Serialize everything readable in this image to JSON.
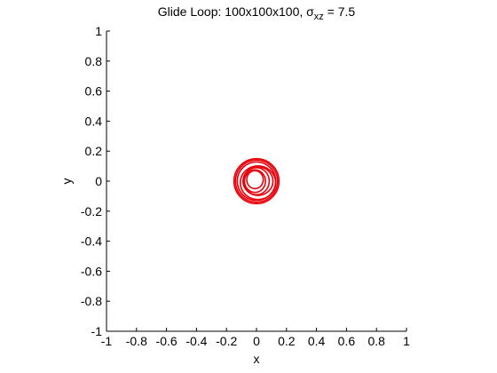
{
  "chart_data": {
    "type": "line",
    "title_main": "Glide Loop: 100x100x100, σ",
    "title_sub": "xz",
    "title_tail": " = 7.5",
    "xlabel": "x",
    "ylabel": "y",
    "xlim": [
      -1,
      1
    ],
    "ylim": [
      -1,
      1
    ],
    "xticks": [
      "-1",
      "-0.8",
      "-0.6",
      "-0.4",
      "-0.2",
      "0",
      "0.2",
      "0.4",
      "0.6",
      "0.8",
      "1"
    ],
    "yticks": [
      "1",
      "0.8",
      "0.6",
      "0.4",
      "0.2",
      "0",
      "-0.2",
      "-0.4",
      "-0.6",
      "-0.8",
      "-1"
    ],
    "grid": false,
    "series": [
      {
        "color": "#e8000b",
        "curves": [
          {
            "cx": 0.0,
            "cy": 0.0,
            "rx": 0.15,
            "ry": 0.15
          },
          {
            "cx": 0.0,
            "cy": 0.0,
            "rx": 0.14,
            "ry": 0.14
          },
          {
            "cx": 0.0,
            "cy": 0.0,
            "rx": 0.128,
            "ry": 0.128
          },
          {
            "cx": 0.01,
            "cy": -0.01,
            "rx": 0.118,
            "ry": 0.112
          },
          {
            "cx": 0.01,
            "cy": 0.0,
            "rx": 0.1,
            "ry": 0.095
          },
          {
            "cx": 0.0,
            "cy": 0.0,
            "rx": 0.085,
            "ry": 0.09
          },
          {
            "cx": -0.01,
            "cy": 0.0,
            "rx": 0.07,
            "ry": 0.075
          },
          {
            "cx": -0.01,
            "cy": 0.01,
            "rx": 0.055,
            "ry": 0.06
          }
        ]
      }
    ]
  }
}
